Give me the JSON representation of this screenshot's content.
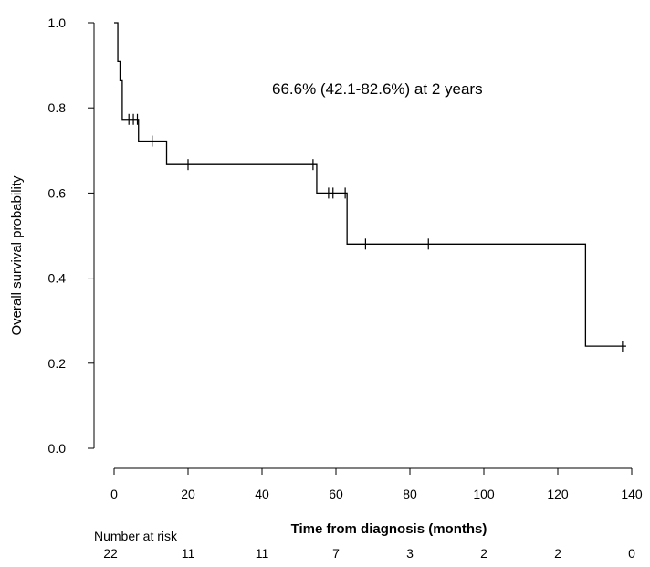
{
  "chart_data": {
    "type": "line",
    "subtype": "kaplan-meier",
    "xlabel": "Time from diagnosis (months)",
    "ylabel": "Overall survival probability",
    "xlim": [
      0,
      140
    ],
    "ylim": [
      0,
      1
    ],
    "x_ticks": [
      0,
      20,
      40,
      60,
      80,
      100,
      120,
      140
    ],
    "y_ticks": [
      "0.0",
      "0.2",
      "0.4",
      "0.6",
      "0.8",
      "1.0"
    ],
    "grid": false,
    "annotation": "66.6% (42.1-82.6%) at 2 years",
    "series": [
      {
        "steps": [
          {
            "x": 0,
            "y": 1.0
          },
          {
            "x": 1.0,
            "y": 0.909
          },
          {
            "x": 1.6,
            "y": 0.864
          },
          {
            "x": 2.2,
            "y": 0.773
          },
          {
            "x": 6.6,
            "y": 0.722
          },
          {
            "x": 14.2,
            "y": 0.667
          },
          {
            "x": 54.8,
            "y": 0.6
          },
          {
            "x": 63.0,
            "y": 0.48
          },
          {
            "x": 127.5,
            "y": 0.24
          },
          {
            "x": 138.5,
            "y": 0.24
          }
        ],
        "censored": [
          {
            "x": 4.0,
            "y": 0.773
          },
          {
            "x": 5.2,
            "y": 0.773
          },
          {
            "x": 6.3,
            "y": 0.773
          },
          {
            "x": 10.3,
            "y": 0.722
          },
          {
            "x": 20.0,
            "y": 0.667
          },
          {
            "x": 53.8,
            "y": 0.667
          },
          {
            "x": 58.0,
            "y": 0.6
          },
          {
            "x": 59.2,
            "y": 0.6
          },
          {
            "x": 62.5,
            "y": 0.6
          },
          {
            "x": 68.0,
            "y": 0.48
          },
          {
            "x": 85.0,
            "y": 0.48
          },
          {
            "x": 137.5,
            "y": 0.24
          }
        ]
      }
    ],
    "risk_table": {
      "label": "Number at risk",
      "values": [
        "22",
        "11",
        "11",
        "7",
        "3",
        "2",
        "2",
        "0"
      ]
    }
  }
}
